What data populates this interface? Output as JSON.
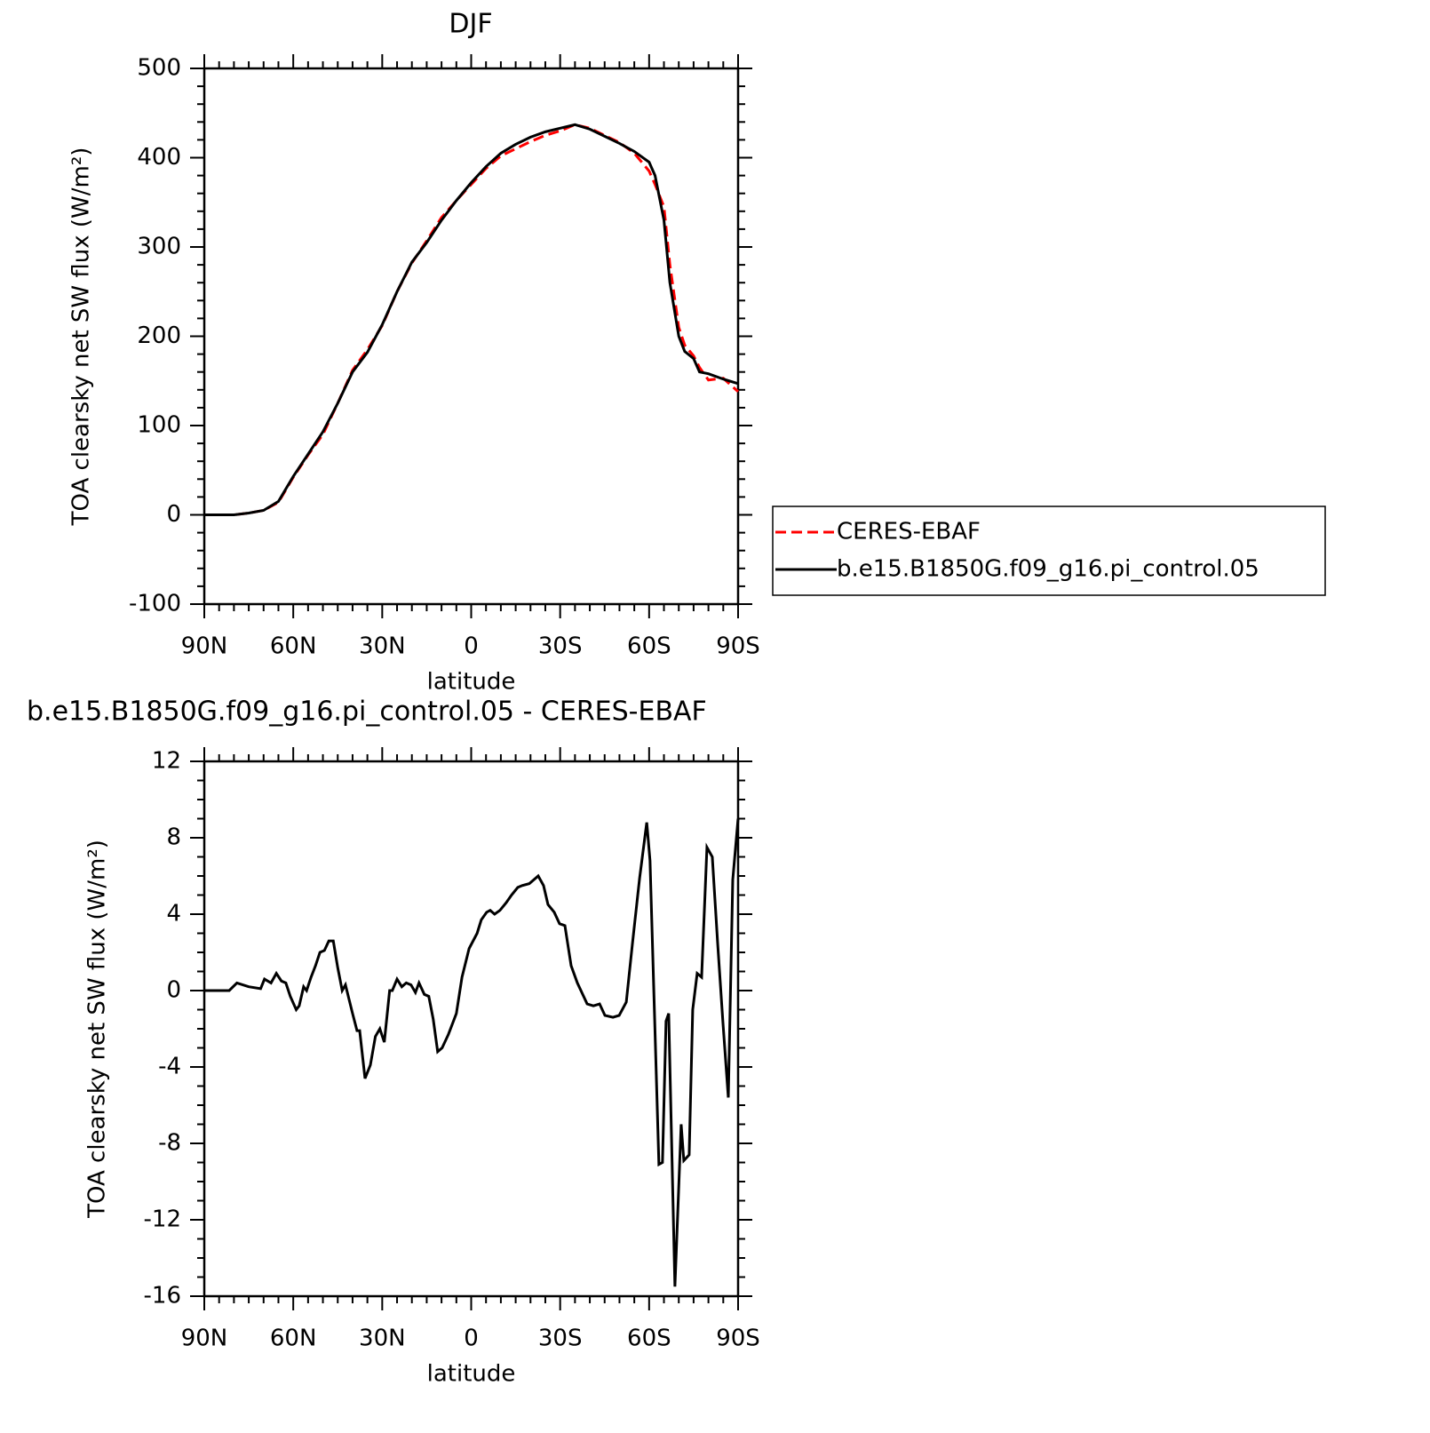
{
  "chart_data": [
    {
      "type": "line",
      "title": "DJF",
      "xlabel": "latitude",
      "ylabel": "TOA clearsky net SW flux (W/m²)",
      "x": [
        90,
        85,
        80,
        75,
        70,
        65,
        60,
        55,
        50,
        45,
        40,
        35,
        30,
        25,
        20,
        15,
        10,
        5,
        0,
        -5,
        -10,
        -15,
        -20,
        -25,
        -30,
        -35,
        -40,
        -45,
        -50,
        -55,
        -60,
        -62,
        -65,
        -67,
        -70,
        -72,
        -75,
        -77,
        -80,
        -85,
        -90
      ],
      "series": [
        {
          "name": "CERES-EBAF",
          "color": "#ff0000",
          "line_style": "dashed",
          "values": [
            0,
            0,
            0,
            2,
            5,
            14,
            42,
            67,
            90,
            125,
            162,
            185,
            212,
            250,
            282,
            307,
            333,
            352,
            370,
            388,
            402,
            410,
            418,
            425,
            430,
            437,
            433,
            425,
            417,
            405,
            385,
            370,
            345,
            280,
            210,
            190,
            178,
            165,
            151,
            153,
            138
          ]
        },
        {
          "name": "b.e15.B1850G.f09_g16.pi_control.05",
          "color": "#000000",
          "line_style": "solid",
          "values": [
            0,
            0,
            0,
            2,
            5,
            15,
            43,
            68,
            93,
            125,
            160,
            182,
            213,
            250,
            283,
            305,
            330,
            352,
            372,
            390,
            405,
            415,
            423,
            429,
            433,
            437,
            432,
            424,
            416,
            407,
            395,
            380,
            330,
            260,
            200,
            183,
            175,
            160,
            158,
            152,
            147
          ]
        }
      ],
      "xlim": [
        90,
        -90
      ],
      "xticks": [
        {
          "value": 90,
          "label": "90N"
        },
        {
          "value": 60,
          "label": "60N"
        },
        {
          "value": 30,
          "label": "30N"
        },
        0,
        {
          "value": -30,
          "label": "30S"
        },
        {
          "value": -60,
          "label": "60S"
        },
        {
          "value": -90,
          "label": "90S"
        }
      ],
      "ylim": [
        -100,
        500
      ],
      "yticks": [
        -100,
        0,
        100,
        200,
        300,
        400,
        500
      ],
      "legend": "right"
    },
    {
      "type": "line",
      "title": "b.e15.B1850G.f09_g16.pi_control.05 - CERES-EBAF",
      "xlabel": "latitude",
      "ylabel": "TOA clearsky net SW flux (W/m²)",
      "x": [
        90,
        81.6,
        79,
        75,
        71,
        69.7,
        67.5,
        65.7,
        64,
        62.5,
        61,
        59,
        58,
        56.5,
        55.5,
        54,
        52.5,
        51,
        49.5,
        48,
        46.5,
        45,
        43.5,
        42.4,
        40,
        38.5,
        37.6,
        35.8,
        34,
        32.3,
        30.8,
        29.3,
        27.5,
        26.6,
        25,
        23.4,
        21.9,
        20.3,
        18.8,
        17.6,
        15.8,
        14.3,
        12.8,
        11.3,
        9.8,
        7.7,
        5,
        3.1,
        0.7,
        -2,
        -3.4,
        -5.2,
        -6.4,
        -7.9,
        -9.7,
        -11.8,
        -13.6,
        -15.7,
        -17.2,
        -19.6,
        -22.6,
        -24.4,
        -25.9,
        -28,
        -29.8,
        -31.6,
        -33.7,
        -35.8,
        -37.6,
        -39.1,
        -41.2,
        -43.3,
        -45.1,
        -47.8,
        -49.9,
        -52.3,
        -54.4,
        -56.8,
        -59.2,
        -60.3,
        -63.3,
        -64.5,
        -65.7,
        -66.6,
        -68.7,
        -70.8,
        -71.7,
        -73.5,
        -74.7,
        -76.2,
        -77.7,
        -79.5,
        -81.3,
        -83.1,
        -84.9,
        -86.7,
        -88.2,
        -90
      ],
      "series": [
        {
          "name": "b.e15.B1850G.f09_g16.pi_control.05 - CERES-EBAF",
          "color": "#000000",
          "line_style": "solid",
          "values": [
            0,
            0,
            0.4,
            0.2,
            0.1,
            0.6,
            0.4,
            0.9,
            0.5,
            0.4,
            -0.3,
            -1.0,
            -0.8,
            0.2,
            0,
            0.7,
            1.3,
            2.0,
            2.1,
            2.6,
            2.6,
            1.2,
            0,
            0.3,
            -1.2,
            -2.1,
            -2.1,
            -4.6,
            -3.9,
            -2.4,
            -2,
            -2.7,
            0,
            0,
            0.6,
            0.2,
            0.4,
            0.3,
            -0.1,
            0.4,
            -0.2,
            -0.3,
            -1.5,
            -3.2,
            -3.0,
            -2.3,
            -1.2,
            0.7,
            2.2,
            3.0,
            3.7,
            4.1,
            4.2,
            4.0,
            4.2,
            4.6,
            5.0,
            5.4,
            5.5,
            5.6,
            6.0,
            5.5,
            4.5,
            4.1,
            3.5,
            3.4,
            1.3,
            0.4,
            -0.2,
            -0.7,
            -0.8,
            -0.7,
            -1.3,
            -1.4,
            -1.3,
            -0.6,
            2.5,
            5.9,
            8.8,
            6.8,
            -9.1,
            -9.0,
            -1.6,
            -1.2,
            -15.5,
            -7.0,
            -8.9,
            -8.6,
            -1.0,
            0.9,
            0.7,
            7.5,
            7.0,
            2.5,
            -1.7,
            -5.6,
            5.8,
            9.0
          ]
        }
      ],
      "xlim": [
        90,
        -90
      ],
      "xticks": [
        {
          "value": 90,
          "label": "90N"
        },
        {
          "value": 60,
          "label": "60N"
        },
        {
          "value": 30,
          "label": "30N"
        },
        0,
        {
          "value": -30,
          "label": "30S"
        },
        {
          "value": -60,
          "label": "60S"
        },
        {
          "value": -90,
          "label": "90S"
        }
      ],
      "ylim": [
        -16,
        12
      ],
      "yticks": [
        -16,
        -12,
        -8,
        -4,
        0,
        4,
        8,
        12
      ]
    }
  ]
}
